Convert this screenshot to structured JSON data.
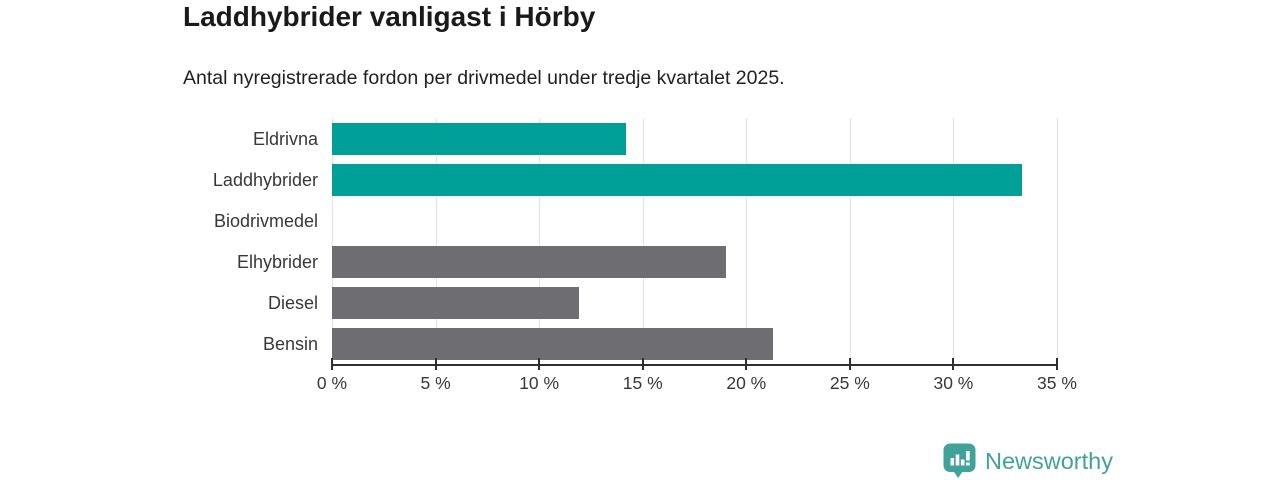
{
  "header": {
    "title": "Laddhybrider vanligast i Hörby",
    "subtitle": "Antal nyregistrerade fordon per drivmedel under tredje kvartalet 2025."
  },
  "chart_data": {
    "type": "bar",
    "orientation": "horizontal",
    "title": "Laddhybrider vanligast i Hörby",
    "subtitle": "Antal nyregistrerade fordon per drivmedel under tredje kvartalet 2025.",
    "categories": [
      "Eldrivna",
      "Laddhybrider",
      "Biodrivmedel",
      "Elhybrider",
      "Diesel",
      "Bensin"
    ],
    "values": [
      14.2,
      33.3,
      0,
      19.0,
      11.9,
      21.3
    ],
    "unit": "%",
    "xlim": [
      0,
      35
    ],
    "xticks": [
      0,
      5,
      10,
      15,
      20,
      25,
      30,
      35
    ],
    "xtick_labels": [
      "0 %",
      "5 %",
      "10 %",
      "15 %",
      "20 %",
      "25 %",
      "30 %",
      "35 %"
    ],
    "xlabel": "",
    "ylabel": "",
    "grid": "vertical",
    "legend": "none",
    "bar_colors": [
      "#00a098",
      "#00a098",
      "#6e6d72",
      "#6e6d72",
      "#6e6d72",
      "#6e6d72"
    ],
    "highlight_color": "#00a098",
    "default_color": "#6e6d72"
  },
  "footer": {
    "brand": "Newsworthy",
    "brand_color": "#41a29b",
    "logo_icon": "bar-chart-speech-bubble-icon"
  },
  "colors": {
    "background": "#ffffff",
    "title_text": "#1a1a1a",
    "subtitle_text": "#212121",
    "axis_line": "#2f2f2f",
    "tick_text": "#383838",
    "category_text": "#383838",
    "gridline": "#e2e2e2"
  }
}
